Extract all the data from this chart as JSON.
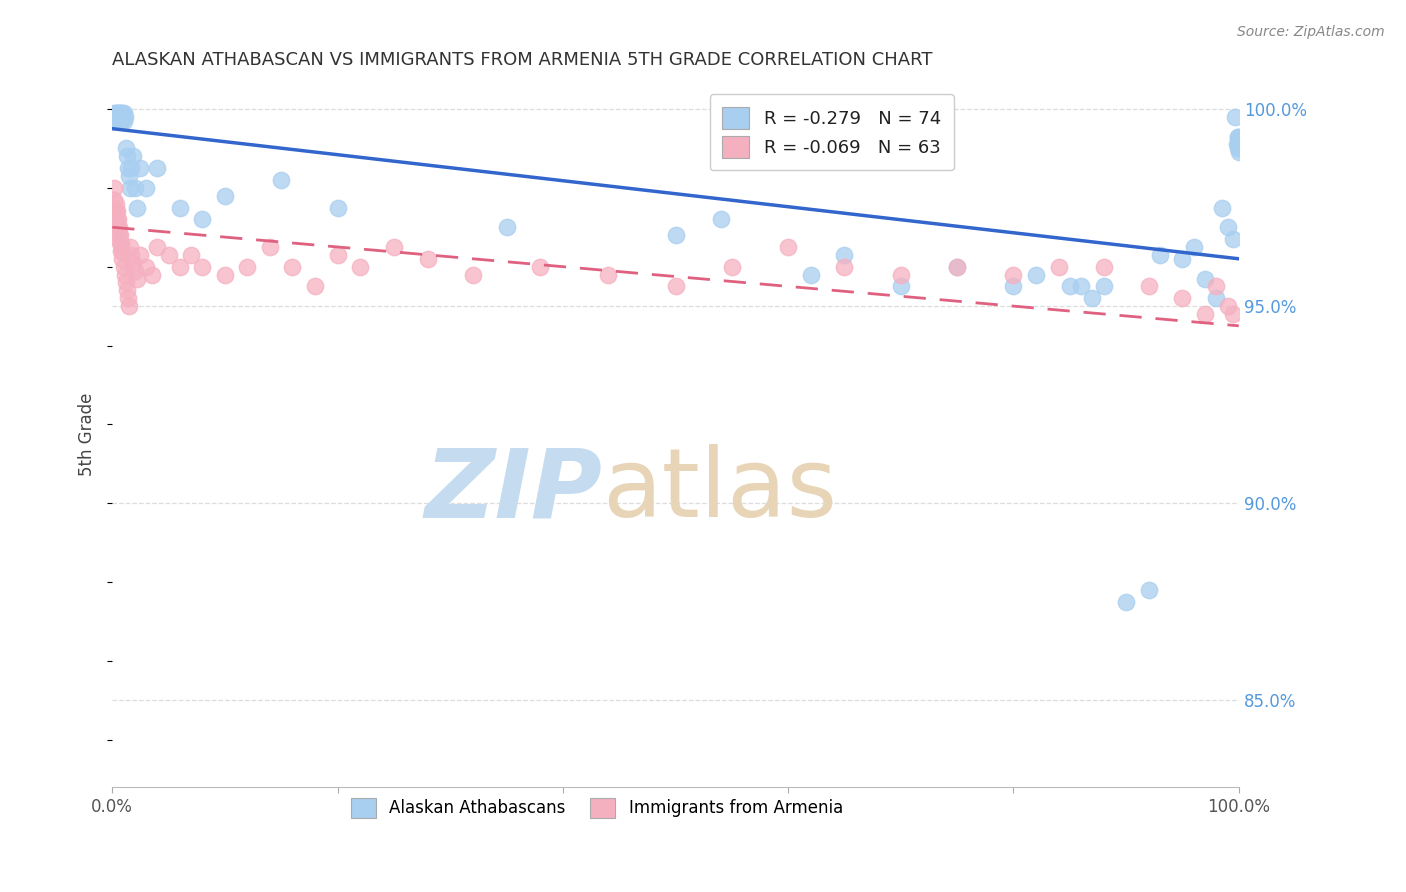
{
  "title": "ALASKAN ATHABASCAN VS IMMIGRANTS FROM ARMENIA 5TH GRADE CORRELATION CHART",
  "source": "Source: ZipAtlas.com",
  "ylabel": "5th Grade",
  "xlim": [
    0.0,
    1.0
  ],
  "ylim": [
    0.828,
    1.007
  ],
  "blue_R": -0.279,
  "blue_N": 74,
  "pink_R": -0.069,
  "pink_N": 63,
  "blue_label": "Alaskan Athabascans",
  "pink_label": "Immigrants from Armenia",
  "blue_color": "#A8CEF0",
  "pink_color": "#F5B0C0",
  "blue_edge_color": "#7AAAD8",
  "pink_edge_color": "#E888A0",
  "blue_line_color": "#3366CC",
  "pink_line_color": "#E06080",
  "grid_color": "#DDDDDD",
  "blue_line_y0": 0.995,
  "blue_line_y1": 0.962,
  "pink_line_y0": 0.97,
  "pink_line_y1": 0.945,
  "blue_x": [
    0.001,
    0.002,
    0.002,
    0.003,
    0.003,
    0.004,
    0.004,
    0.005,
    0.005,
    0.005,
    0.006,
    0.006,
    0.006,
    0.007,
    0.007,
    0.007,
    0.008,
    0.008,
    0.008,
    0.009,
    0.009,
    0.01,
    0.01,
    0.011,
    0.012,
    0.013,
    0.014,
    0.015,
    0.016,
    0.017,
    0.018,
    0.02,
    0.022,
    0.025,
    0.03,
    0.04,
    0.06,
    0.08,
    0.1,
    0.15,
    0.2,
    0.35,
    0.5,
    0.54,
    0.62,
    0.65,
    0.7,
    0.75,
    0.8,
    0.82,
    0.85,
    0.86,
    0.87,
    0.88,
    0.9,
    0.92,
    0.93,
    0.95,
    0.96,
    0.97,
    0.98,
    0.985,
    0.99,
    0.995,
    0.997,
    0.998,
    0.999,
    0.9992,
    0.9995,
    0.9997,
    0.9999,
    1.0,
    1.0,
    1.0
  ],
  "blue_y": [
    0.997,
    0.999,
    0.998,
    0.997,
    0.999,
    0.998,
    0.999,
    0.997,
    0.998,
    0.999,
    0.998,
    0.999,
    0.997,
    0.998,
    0.999,
    0.997,
    0.998,
    0.999,
    0.997,
    0.999,
    0.998,
    0.997,
    0.999,
    0.998,
    0.99,
    0.988,
    0.985,
    0.983,
    0.98,
    0.985,
    0.988,
    0.98,
    0.975,
    0.985,
    0.98,
    0.985,
    0.975,
    0.972,
    0.978,
    0.982,
    0.975,
    0.97,
    0.968,
    0.972,
    0.958,
    0.963,
    0.955,
    0.96,
    0.955,
    0.958,
    0.955,
    0.955,
    0.952,
    0.955,
    0.875,
    0.878,
    0.963,
    0.962,
    0.965,
    0.957,
    0.952,
    0.975,
    0.97,
    0.967,
    0.998,
    0.991,
    0.993,
    0.991,
    0.993,
    0.99,
    0.992,
    0.99,
    0.991,
    0.989
  ],
  "pink_x": [
    0.001,
    0.002,
    0.002,
    0.003,
    0.003,
    0.004,
    0.004,
    0.005,
    0.005,
    0.006,
    0.006,
    0.007,
    0.007,
    0.008,
    0.008,
    0.009,
    0.009,
    0.01,
    0.011,
    0.012,
    0.013,
    0.014,
    0.015,
    0.016,
    0.017,
    0.018,
    0.02,
    0.022,
    0.025,
    0.03,
    0.035,
    0.04,
    0.05,
    0.06,
    0.07,
    0.08,
    0.1,
    0.12,
    0.14,
    0.16,
    0.18,
    0.2,
    0.22,
    0.25,
    0.28,
    0.32,
    0.38,
    0.44,
    0.5,
    0.55,
    0.6,
    0.65,
    0.7,
    0.75,
    0.8,
    0.84,
    0.88,
    0.92,
    0.95,
    0.97,
    0.98,
    0.99,
    0.995
  ],
  "pink_y": [
    0.975,
    0.977,
    0.98,
    0.974,
    0.976,
    0.972,
    0.974,
    0.97,
    0.972,
    0.968,
    0.97,
    0.966,
    0.968,
    0.964,
    0.966,
    0.962,
    0.964,
    0.96,
    0.958,
    0.956,
    0.954,
    0.952,
    0.95,
    0.965,
    0.963,
    0.961,
    0.959,
    0.957,
    0.963,
    0.96,
    0.958,
    0.965,
    0.963,
    0.96,
    0.963,
    0.96,
    0.958,
    0.96,
    0.965,
    0.96,
    0.955,
    0.963,
    0.96,
    0.965,
    0.962,
    0.958,
    0.96,
    0.958,
    0.955,
    0.96,
    0.965,
    0.96,
    0.958,
    0.96,
    0.958,
    0.96,
    0.96,
    0.955,
    0.952,
    0.948,
    0.955,
    0.95,
    0.948
  ],
  "ytick_positions": [
    0.85,
    0.9,
    0.95,
    1.0
  ],
  "ytick_labels": [
    "85.0%",
    "90.0%",
    "95.0%",
    "100.0%"
  ],
  "xtick_positions": [
    0.0,
    0.2,
    0.4,
    0.6,
    0.8,
    1.0
  ],
  "xtick_labels": [
    "0.0%",
    "",
    "",
    "",
    "",
    "100.0%"
  ]
}
